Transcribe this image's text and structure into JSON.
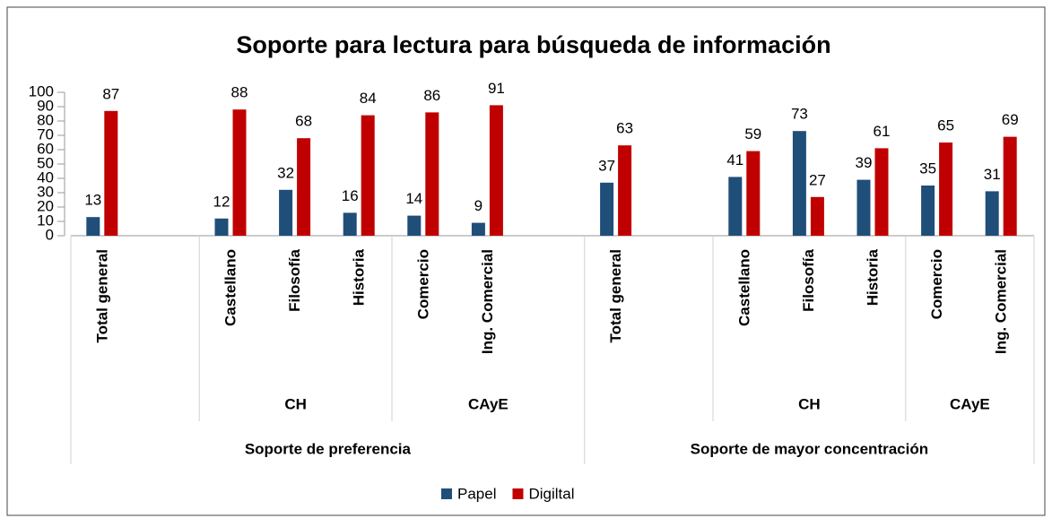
{
  "chart_data": {
    "type": "bar",
    "title": "Soporte para lectura para búsqueda de información",
    "categories": [
      "Total general",
      null,
      "Castellano",
      "Filosofía",
      "Historia",
      "Comercio",
      "Ing. Comercial",
      null,
      "Total general",
      null,
      "Castellano",
      "Filosofía",
      "Historia",
      "Comercio",
      "Ing. Comercial"
    ],
    "subgroups": [
      null,
      null,
      "CH",
      "CH",
      "CH",
      "CAyE",
      "CAyE",
      "CAyE",
      null,
      null,
      "CH",
      "CH",
      "CH",
      "CAyE",
      "CAyE"
    ],
    "groups": [
      "Soporte de preferencia",
      "Soporte de preferencia",
      "Soporte de preferencia",
      "Soporte de preferencia",
      "Soporte de preferencia",
      "Soporte de preferencia",
      "Soporte de preferencia",
      "Soporte de preferencia",
      "Soporte de mayor concentración",
      "Soporte de mayor concentración",
      "Soporte de mayor concentración",
      "Soporte de mayor concentración",
      "Soporte de mayor concentración",
      "Soporte de mayor concentración",
      "Soporte de mayor concentración"
    ],
    "series": [
      {
        "name": "Papel",
        "color": "#1f4e79",
        "values": [
          13,
          null,
          12,
          32,
          16,
          14,
          9,
          null,
          37,
          null,
          41,
          73,
          39,
          35,
          31
        ]
      },
      {
        "name": "Digiltal",
        "color": "#c00000",
        "values": [
          87,
          null,
          88,
          68,
          84,
          86,
          91,
          null,
          63,
          null,
          59,
          27,
          61,
          65,
          69
        ]
      }
    ],
    "ylim": [
      0,
      100
    ],
    "yticks": [
      0,
      10,
      20,
      30,
      40,
      50,
      60,
      70,
      80,
      90,
      100
    ],
    "grid": false,
    "legend": "bottom"
  }
}
